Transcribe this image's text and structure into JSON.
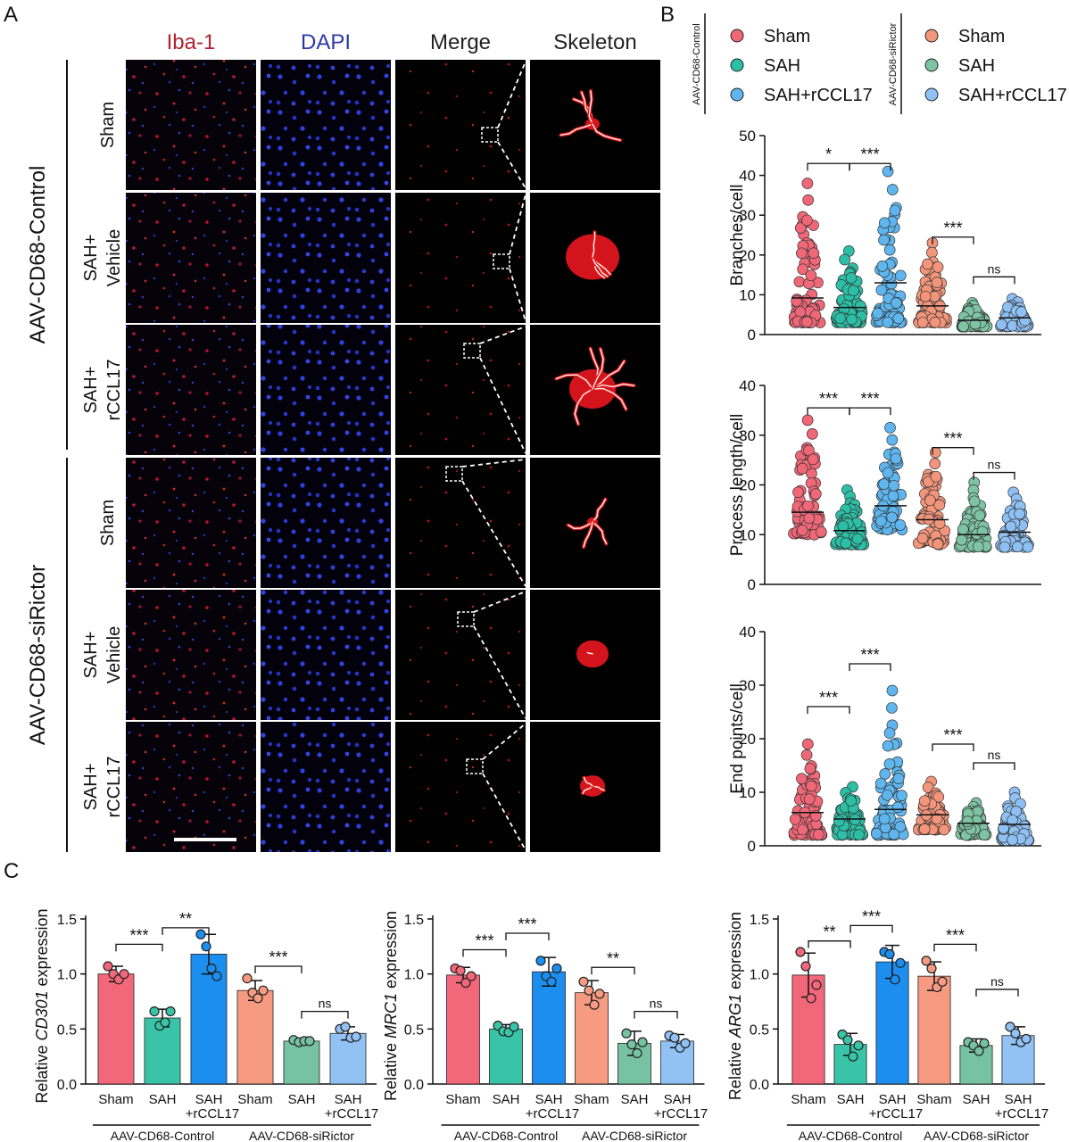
{
  "panel_letters": [
    "A",
    "B",
    "C"
  ],
  "panel_a": {
    "columns": [
      "Iba-1",
      "DAPI",
      "Merge",
      "Skeleton"
    ],
    "column_colors": [
      "#b1222e",
      "#2b3aa8",
      "#222222",
      "#222222"
    ],
    "row_labels": [
      [
        "Sham"
      ],
      [
        "SAH+",
        "Vehicle"
      ],
      [
        "SAH+",
        "rCCL17"
      ],
      [
        "Sham"
      ],
      [
        "SAH+",
        "Vehicle"
      ],
      [
        "SAH+",
        "rCCL17"
      ]
    ],
    "groups": [
      "AAV-CD68-Control",
      "AAV-CD68-siRictor"
    ]
  },
  "legend": {
    "left_group": "AAV-CD68-Control",
    "right_group": "AAV-CD68-siRictor",
    "entries": [
      "Sham",
      "SAH",
      "SAH+rCCL17"
    ],
    "colors_control": [
      "#f06777",
      "#2cbfa6",
      "#5fb6ee"
    ],
    "colors_sirictor": [
      "#f3957a",
      "#7ec4a4",
      "#8fc0f3"
    ]
  },
  "chart_data": [
    {
      "type": "scatter",
      "ylabel": "Branches/cell",
      "ylim": [
        0,
        50
      ],
      "yticks": [
        0,
        10,
        20,
        30,
        40,
        50
      ],
      "groups": [
        "Sham",
        "SAH",
        "SAH+rCCL17",
        "Sham",
        "SAH",
        "SAH+rCCL17"
      ],
      "means": [
        9.2,
        6.8,
        13,
        7.2,
        3.6,
        4.2
      ],
      "ranges": [
        [
          3,
          38
        ],
        [
          3,
          21
        ],
        [
          3,
          41
        ],
        [
          3,
          23
        ],
        [
          2,
          8
        ],
        [
          2,
          9
        ]
      ],
      "brackets": [
        {
          "from": 0,
          "to": 1,
          "y": 43,
          "label": "*"
        },
        {
          "from": 1,
          "to": 2,
          "y": 43,
          "label": "***"
        },
        {
          "from": 3,
          "to": 4,
          "y": 24.5,
          "label": "***"
        },
        {
          "from": 4,
          "to": 5,
          "y": 14.5,
          "label": "ns"
        }
      ]
    },
    {
      "type": "scatter",
      "ylabel": "Process length/cell",
      "ylim": [
        0,
        40
      ],
      "yticks": [
        0,
        10,
        20,
        30,
        40
      ],
      "groups": [
        "Sham",
        "SAH",
        "SAH+rCCL17",
        "Sham",
        "SAH",
        "SAH+rCCL17"
      ],
      "means": [
        14.5,
        10.8,
        15.8,
        13,
        10,
        10.5
      ],
      "ranges": [
        [
          10,
          33
        ],
        [
          8,
          19
        ],
        [
          11,
          31.5
        ],
        [
          8,
          26.5
        ],
        [
          7.5,
          20.5
        ],
        [
          7.5,
          18.5
        ]
      ],
      "brackets": [
        {
          "from": 0,
          "to": 1,
          "y": 35.5,
          "label": "***"
        },
        {
          "from": 1,
          "to": 2,
          "y": 35.5,
          "label": "***"
        },
        {
          "from": 3,
          "to": 4,
          "y": 27.5,
          "label": "***"
        },
        {
          "from": 4,
          "to": 5,
          "y": 22.5,
          "label": "ns"
        }
      ]
    },
    {
      "type": "scatter",
      "ylabel": "End points/cell",
      "ylim": [
        0,
        40
      ],
      "yticks": [
        0,
        10,
        20,
        30,
        40
      ],
      "groups": [
        "Sham",
        "SAH",
        "SAH+rCCL17",
        "Sham",
        "SAH",
        "SAH+rCCL17"
      ],
      "means": [
        6.2,
        5,
        6.8,
        5.8,
        4.2,
        4
      ],
      "ranges": [
        [
          2,
          19
        ],
        [
          2,
          11
        ],
        [
          2,
          29
        ],
        [
          3,
          12
        ],
        [
          2,
          8
        ],
        [
          1,
          10
        ]
      ],
      "brackets": [
        {
          "from": 0,
          "to": 1,
          "y": 26,
          "label": "***"
        },
        {
          "from": 1,
          "to": 2,
          "y": 34,
          "label": "***"
        },
        {
          "from": 3,
          "to": 4,
          "y": 19,
          "label": "***"
        },
        {
          "from": 4,
          "to": 5,
          "y": 15.5,
          "label": "ns"
        }
      ]
    },
    {
      "type": "bar",
      "ylabel_pre": "Relative ",
      "ylabel_gene": "CD301",
      "ylabel_post": " expression",
      "ylim": [
        0,
        1.5
      ],
      "yticks": [
        "0.0",
        "0.5",
        "1.0",
        "1.5"
      ],
      "categories": [
        [
          "Sham"
        ],
        [
          "SAH"
        ],
        [
          "SAH",
          "+rCCL17"
        ],
        [
          "Sham"
        ],
        [
          "SAH"
        ],
        [
          "SAH",
          "+rCCL17"
        ]
      ],
      "values": [
        1.0,
        0.6,
        1.18,
        0.85,
        0.39,
        0.46
      ],
      "errors": [
        0.07,
        0.08,
        0.18,
        0.09,
        0.02,
        0.06
      ],
      "points": [
        [
          1.07,
          1.0,
          0.95,
          1.0
        ],
        [
          0.66,
          0.53,
          0.56,
          0.66
        ],
        [
          1.36,
          1.25,
          1.05,
          0.98
        ],
        [
          0.96,
          0.83,
          0.78,
          0.85
        ],
        [
          0.4,
          0.38,
          0.39,
          0.39
        ],
        [
          0.5,
          0.52,
          0.42,
          0.43
        ]
      ],
      "brackets": [
        {
          "from": 0,
          "to": 1,
          "y": 1.27,
          "label": "***"
        },
        {
          "from": 1,
          "to": 2,
          "y": 1.42,
          "label": "**"
        },
        {
          "from": 3,
          "to": 4,
          "y": 1.07,
          "label": "***"
        },
        {
          "from": 4,
          "to": 5,
          "y": 0.66,
          "label": "ns"
        }
      ],
      "group_labels": [
        "AAV-CD68-Control",
        "AAV-CD68-siRictor"
      ]
    },
    {
      "type": "bar",
      "ylabel_pre": "Relative ",
      "ylabel_gene": "MRC1",
      "ylabel_post": " expression",
      "ylim": [
        0,
        1.5
      ],
      "yticks": [
        "0.0",
        "0.5",
        "1.0",
        "1.5"
      ],
      "categories": [
        [
          "Sham"
        ],
        [
          "SAH"
        ],
        [
          "SAH",
          "+rCCL17"
        ],
        [
          "Sham"
        ],
        [
          "SAH"
        ],
        [
          "SAH",
          "+rCCL17"
        ]
      ],
      "values": [
        0.99,
        0.5,
        1.02,
        0.83,
        0.37,
        0.39
      ],
      "errors": [
        0.07,
        0.04,
        0.13,
        0.11,
        0.11,
        0.06
      ],
      "points": [
        [
          1.05,
          1.03,
          0.92,
          0.98
        ],
        [
          0.53,
          0.48,
          0.47,
          0.52
        ],
        [
          1.12,
          0.98,
          0.93,
          1.05
        ],
        [
          0.93,
          0.85,
          0.72,
          0.82
        ],
        [
          0.46,
          0.36,
          0.28,
          0.38
        ],
        [
          0.44,
          0.42,
          0.33,
          0.37
        ]
      ],
      "brackets": [
        {
          "from": 0,
          "to": 1,
          "y": 1.22,
          "label": "***"
        },
        {
          "from": 1,
          "to": 2,
          "y": 1.37,
          "label": "***"
        },
        {
          "from": 3,
          "to": 4,
          "y": 1.06,
          "label": "**"
        },
        {
          "from": 4,
          "to": 5,
          "y": 0.66,
          "label": "ns"
        }
      ],
      "group_labels": [
        "AAV-CD68-Control",
        "AAV-CD68-siRictor"
      ]
    },
    {
      "type": "bar",
      "ylabel_pre": "Relative ",
      "ylabel_gene": "ARG1",
      "ylabel_post": " expression",
      "ylim": [
        0,
        1.5
      ],
      "yticks": [
        "0.0",
        "0.5",
        "1.0",
        "1.5"
      ],
      "categories": [
        [
          "Sham"
        ],
        [
          "SAH"
        ],
        [
          "SAH",
          "+rCCL17"
        ],
        [
          "Sham"
        ],
        [
          "SAH"
        ],
        [
          "SAH",
          "+rCCL17"
        ]
      ],
      "values": [
        0.99,
        0.36,
        1.11,
        0.98,
        0.35,
        0.44
      ],
      "errors": [
        0.2,
        0.1,
        0.15,
        0.13,
        0.06,
        0.08
      ],
      "points": [
        [
          1.2,
          1.07,
          0.78,
          0.9
        ],
        [
          0.45,
          0.4,
          0.25,
          0.35
        ],
        [
          1.2,
          1.18,
          0.95,
          1.1
        ],
        [
          1.12,
          1.05,
          0.88,
          0.93
        ],
        [
          0.38,
          0.35,
          0.3,
          0.37
        ],
        [
          0.52,
          0.46,
          0.38,
          0.41
        ]
      ],
      "brackets": [
        {
          "from": 0,
          "to": 1,
          "y": 1.3,
          "label": "**"
        },
        {
          "from": 1,
          "to": 2,
          "y": 1.44,
          "label": "***"
        },
        {
          "from": 3,
          "to": 4,
          "y": 1.27,
          "label": "***"
        },
        {
          "from": 4,
          "to": 5,
          "y": 0.86,
          "label": "ns"
        }
      ],
      "group_labels": [
        "AAV-CD68-Control",
        "AAV-CD68-siRictor"
      ]
    }
  ]
}
